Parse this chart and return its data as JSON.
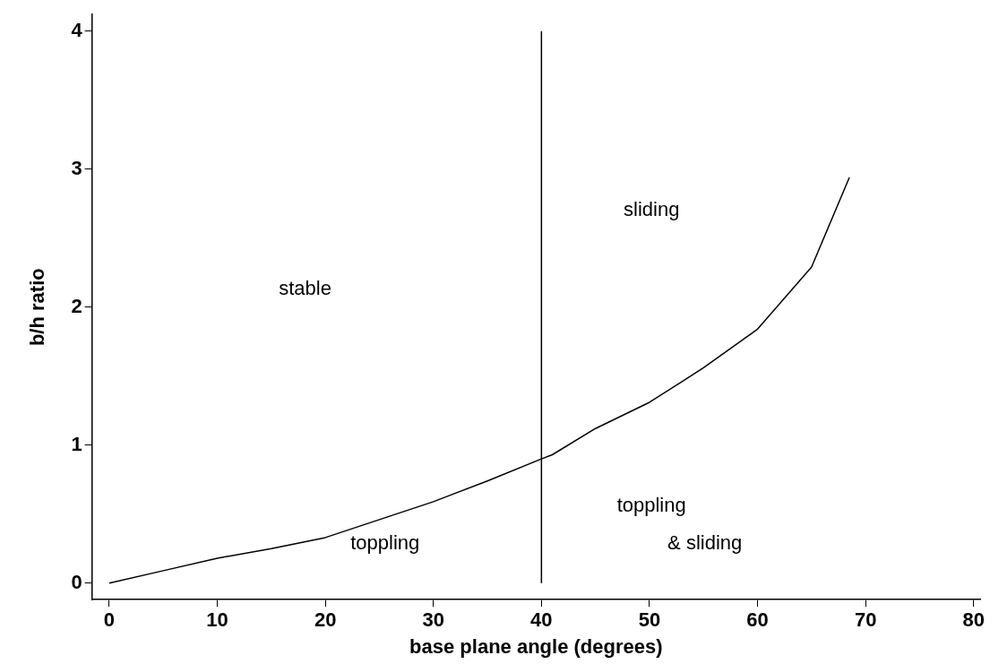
{
  "chart_data": {
    "type": "line",
    "xlabel": "base plane angle (degrees)",
    "ylabel": "b/h ratio",
    "series": [
      {
        "color": "#000000",
        "x": [
          0,
          5,
          10,
          15,
          20,
          25,
          30,
          35,
          40,
          41,
          45,
          50,
          55,
          60,
          65,
          68.5
        ],
        "values": [
          0,
          0.09,
          0.18,
          0.25,
          0.33,
          0.46,
          0.59,
          0.74,
          0.9,
          0.93,
          1.12,
          1.31,
          1.56,
          1.84,
          2.29,
          2.94
        ]
      }
    ],
    "ref_lines": [
      {
        "axis": "x",
        "value": 40,
        "color": "#000000"
      }
    ],
    "xlim": [
      -1.6,
      80.6
    ],
    "ylim": [
      -0.12,
      4.12
    ],
    "xticks": [
      0,
      10,
      20,
      30,
      40,
      50,
      60,
      70,
      80
    ],
    "yticks": [
      0,
      1,
      2,
      3,
      4
    ],
    "grid": false,
    "legend": false,
    "marker": "none",
    "line_style": "solid",
    "annotations": [
      "stable",
      "sliding",
      "toppling",
      "toppling",
      "& sliding"
    ]
  }
}
